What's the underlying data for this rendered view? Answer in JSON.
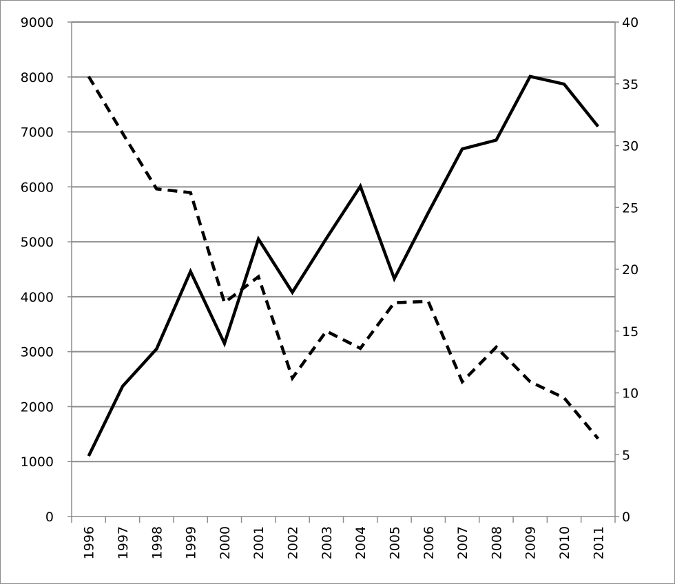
{
  "chart_data": {
    "type": "line",
    "title": "",
    "xlabel": "",
    "ylabel": "",
    "y2label": "",
    "categories": [
      "1996",
      "1997",
      "1998",
      "1999",
      "2000",
      "2001",
      "2002",
      "2003",
      "2004",
      "2005",
      "2006",
      "2007",
      "2008",
      "2009",
      "2010",
      "2011"
    ],
    "ylim": [
      0,
      9000
    ],
    "y_ticks": [
      "0",
      "1000",
      "2000",
      "3000",
      "4000",
      "5000",
      "6000",
      "7000",
      "8000",
      "9000"
    ],
    "y2lim": [
      0,
      40
    ],
    "y2_ticks": [
      "0",
      "5",
      "10",
      "15",
      "20",
      "25",
      "30",
      "35",
      "40"
    ],
    "grid": true,
    "legend": "none",
    "series": [
      {
        "axis": "left",
        "style": "solid",
        "color": "#000000",
        "values": [
          1100,
          2370,
          3050,
          4460,
          3150,
          5050,
          4080,
          5060,
          6010,
          4330,
          5530,
          6690,
          6850,
          8010,
          7870,
          7100
        ]
      },
      {
        "axis": "right",
        "style": "dashed",
        "color": "#000000",
        "values": [
          35.6,
          31.0,
          26.5,
          26.2,
          17.3,
          19.4,
          11.2,
          15.0,
          13.6,
          17.3,
          17.4,
          10.9,
          13.7,
          10.9,
          9.6,
          6.3
        ]
      }
    ]
  }
}
